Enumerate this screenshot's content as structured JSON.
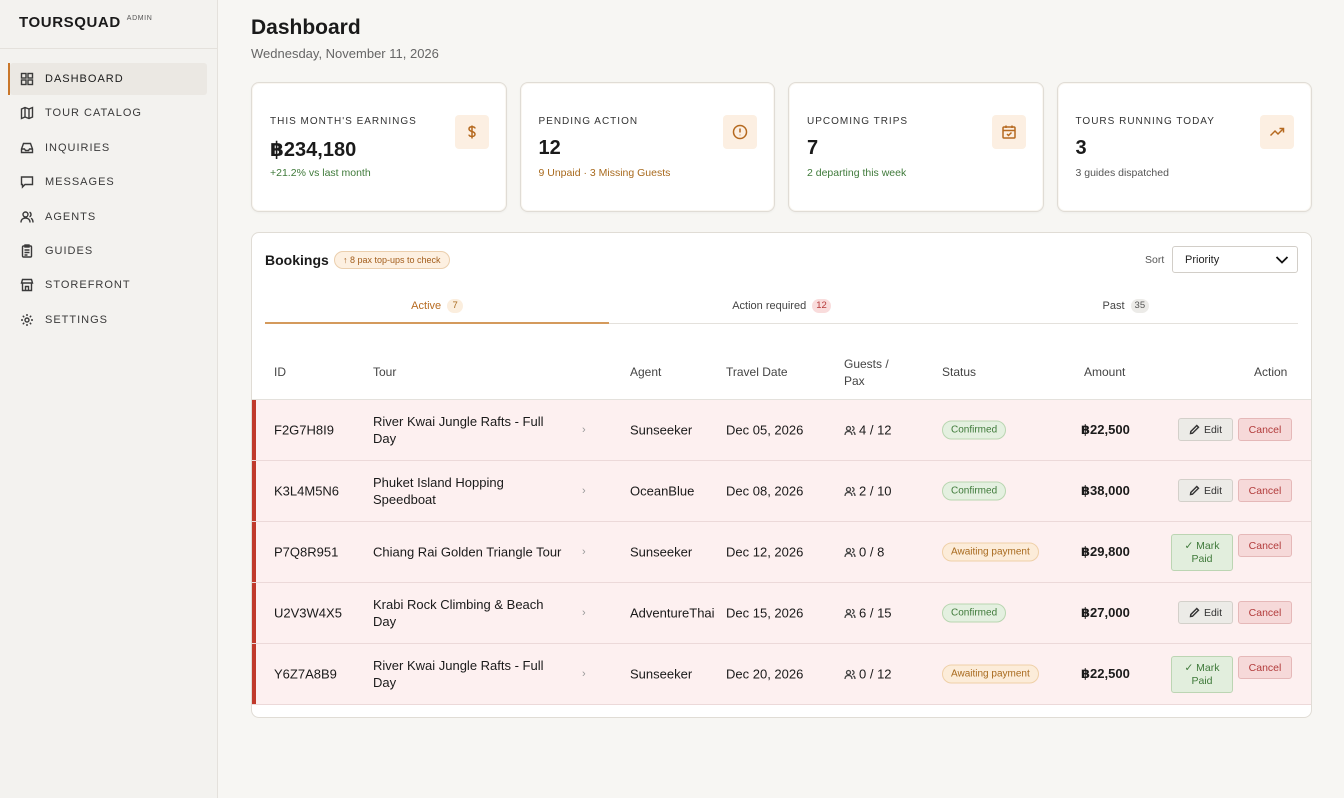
{
  "brand": {
    "name": "TOURSQUAD",
    "tag": "ADMIN"
  },
  "nav": [
    {
      "label": "DASHBOARD",
      "icon": "grid-icon",
      "active": true
    },
    {
      "label": "TOUR CATALOG",
      "icon": "map-icon"
    },
    {
      "label": "INQUIRIES",
      "icon": "inbox-icon"
    },
    {
      "label": "MESSAGES",
      "icon": "chat-icon"
    },
    {
      "label": "AGENTS",
      "icon": "users-icon"
    },
    {
      "label": "GUIDES",
      "icon": "clipboard-icon"
    },
    {
      "label": "STOREFRONT",
      "icon": "store-icon"
    },
    {
      "label": "SETTINGS",
      "icon": "gear-icon"
    }
  ],
  "header": {
    "title": "Dashboard",
    "date": "Wednesday, November 11, 2026"
  },
  "cards": [
    {
      "label": "THIS MONTH'S EARNINGS",
      "value": "฿234,180",
      "sub": "+21.2% vs last month",
      "icon": "dollar-icon"
    },
    {
      "label": "PENDING ACTION",
      "value": "12",
      "sub": "9 Unpaid · 3 Missing Guests",
      "icon": "alert-circle-icon"
    },
    {
      "label": "UPCOMING TRIPS",
      "value": "7",
      "sub": "2 departing this week",
      "icon": "calendar-icon"
    },
    {
      "label": "TOURS RUNNING TODAY",
      "value": "3",
      "sub": "3 guides dispatched",
      "icon": "trending-up-icon"
    }
  ],
  "bookings": {
    "title": "Bookings",
    "topup_badge": "↑ 8 pax top-ups to check",
    "sort_label": "Sort",
    "sort_value": "Priority",
    "tabs": [
      {
        "label": "Active",
        "count": "7"
      },
      {
        "label": "Action required",
        "count": "12"
      },
      {
        "label": "Past",
        "count": "35"
      }
    ],
    "columns": {
      "id": "ID",
      "tour": "Tour",
      "agent": "Agent",
      "date": "Travel Date",
      "guests1": "Guests /",
      "guests2": "Pax",
      "status": "Status",
      "amount": "Amount",
      "action": "Action"
    },
    "rows": [
      {
        "id": "F2G7H8I9",
        "tour": "River Kwai Jungle Rafts - Full Day",
        "agent": "Sunseeker",
        "date": "Dec 05, 2026",
        "guests": "4 / 12",
        "status": "Confirmed",
        "amount": "฿22,500"
      },
      {
        "id": "K3L4M5N6",
        "tour": "Phuket Island Hopping Speedboat",
        "agent": "OceanBlue",
        "date": "Dec 08, 2026",
        "guests": "2 / 10",
        "status": "Confirmed",
        "amount": "฿38,000"
      },
      {
        "id": "P7Q8R951",
        "tour": "Chiang Rai Golden Triangle Tour",
        "agent": "Sunseeker",
        "date": "Dec 12, 2026",
        "guests": "0 / 8",
        "status": "Awaiting payment",
        "amount": "฿29,800"
      },
      {
        "id": "U2V3W4X5",
        "tour": "Krabi Rock Climbing & Beach Day",
        "agent": "AdventureThai",
        "date": "Dec 15, 2026",
        "guests": "6 / 15",
        "status": "Confirmed",
        "amount": "฿27,000"
      },
      {
        "id": "Y6Z7A8B9",
        "tour": "River Kwai Jungle Rafts - Full Day",
        "agent": "Sunseeker",
        "date": "Dec 20, 2026",
        "guests": "0 / 12",
        "status": "Awaiting payment",
        "amount": "฿22,500"
      }
    ],
    "buttons": {
      "edit": "Edit",
      "cancel": "Cancel",
      "mark1": "✓ Mark",
      "mark2": "Paid"
    }
  }
}
